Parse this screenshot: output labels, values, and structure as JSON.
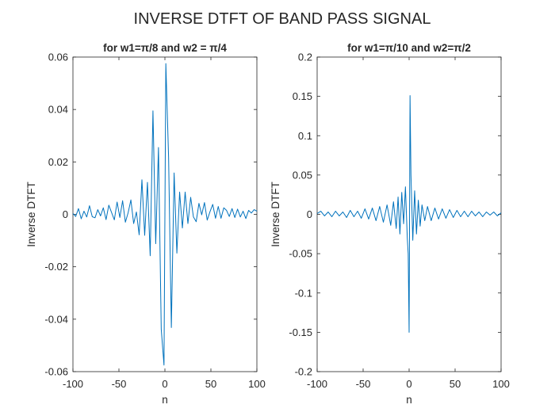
{
  "figure_title": "INVERSE DTFT OF BAND PASS SIGNAL",
  "line_color": "#0072BD",
  "chart_data": [
    {
      "type": "line",
      "title": "for w1=π/8 and w2 = π/4",
      "xlabel": "n",
      "ylabel": "Inverse DTFT",
      "xlim": [
        -100,
        100
      ],
      "ylim": [
        -0.06,
        0.06
      ],
      "xticks": [
        -100,
        -50,
        0,
        50,
        100
      ],
      "yticks": [
        -0.06,
        -0.04,
        -0.02,
        0,
        0.02,
        0.04,
        0.06
      ],
      "xtick_labels": [
        "-100",
        "-50",
        "0",
        "50",
        "100"
      ],
      "ytick_labels": [
        "-0.06",
        "-0.04",
        "-0.02",
        "0",
        "0.02",
        "0.04",
        "0.06"
      ],
      "grid": false,
      "series": [
        {
          "x": [
            -100,
            -97,
            -94,
            -91,
            -88,
            -85,
            -82,
            -79,
            -76,
            -73,
            -70,
            -67,
            -64,
            -61,
            -58,
            -55,
            -52,
            -49,
            -46,
            -43,
            -40,
            -37,
            -34,
            -31,
            -28,
            -25,
            -22,
            -19,
            -16,
            -13,
            -10,
            -7,
            -4,
            -1,
            0,
            1,
            4,
            7,
            10,
            13,
            16,
            19,
            22,
            25,
            28,
            31,
            34,
            37,
            40,
            43,
            46,
            49,
            52,
            55,
            58,
            61,
            64,
            67,
            70,
            73,
            76,
            79,
            82,
            85,
            88,
            91,
            94,
            97,
            100
          ],
          "y": [
            0.0003,
            -0.0008,
            0.0022,
            -0.0017,
            0.0012,
            -0.001,
            0.0033,
            -0.0009,
            -0.0013,
            0.0018,
            -0.0006,
            0.0025,
            -0.002,
            0.0035,
            0.0007,
            -0.0021,
            0.0047,
            -0.0012,
            0.0052,
            -0.003,
            0.0006,
            0.0055,
            -0.0035,
            0.0009,
            -0.0078,
            0.0132,
            -0.008,
            0.0122,
            -0.0158,
            0.0395,
            -0.0112,
            0.0255,
            -0.0438,
            -0.0575,
            0.0,
            0.0575,
            0.0218,
            -0.0432,
            0.0158,
            -0.0148,
            0.0085,
            -0.0052,
            0.0085,
            -0.0035,
            0.0065,
            -0.001,
            -0.0028,
            0.0042,
            -0.0002,
            0.0045,
            -0.0022,
            0.001,
            0.0038,
            -0.0015,
            0.003,
            -0.0015,
            0.0025,
            0.0015,
            -0.0008,
            0.0022,
            -0.0012,
            0.002,
            -0.001,
            0.0012,
            -0.0016,
            0.0015,
            0.0005,
            0.0018,
            0.0012
          ]
        }
      ]
    },
    {
      "type": "line",
      "title": "for w1=π/10 and w2=π/2",
      "xlabel": "n",
      "ylabel": "Inverse DTFT",
      "xlim": [
        -100,
        100
      ],
      "ylim": [
        -0.2,
        0.2
      ],
      "xticks": [
        -100,
        -50,
        0,
        50,
        100
      ],
      "yticks": [
        -0.2,
        -0.15,
        -0.1,
        -0.05,
        0,
        0.05,
        0.1,
        0.15,
        0.2
      ],
      "xtick_labels": [
        "-100",
        "-50",
        "0",
        "50",
        "100"
      ],
      "ytick_labels": [
        "-0.2",
        "-0.15",
        "-0.1",
        "-0.05",
        "0",
        "0.05",
        "0.1",
        "0.15",
        "0.2"
      ],
      "grid": false,
      "series": [
        {
          "x": [
            -100,
            -96,
            -92,
            -88,
            -84,
            -80,
            -76,
            -72,
            -68,
            -64,
            -60,
            -56,
            -52,
            -48,
            -44,
            -40,
            -36,
            -32,
            -28,
            -24,
            -20,
            -17,
            -14,
            -12,
            -10,
            -8,
            -6,
            -4,
            -2,
            -1,
            0,
            1,
            2,
            4,
            6,
            8,
            10,
            12,
            14,
            17,
            20,
            24,
            28,
            32,
            36,
            40,
            44,
            48,
            52,
            56,
            60,
            64,
            68,
            72,
            76,
            80,
            84,
            88,
            92,
            96,
            100
          ],
          "y": [
            0.001,
            0.004,
            -0.002,
            0.003,
            -0.003,
            0.004,
            -0.002,
            0.003,
            -0.004,
            0.005,
            -0.003,
            0.004,
            -0.005,
            0.007,
            -0.006,
            0.008,
            -0.008,
            0.01,
            -0.01,
            0.012,
            -0.014,
            0.016,
            -0.018,
            0.022,
            -0.025,
            0.028,
            -0.012,
            0.035,
            -0.03,
            -0.05,
            -0.15,
            0.151,
            0.05,
            -0.033,
            0.03,
            -0.025,
            0.018,
            -0.015,
            0.012,
            -0.008,
            0.01,
            -0.008,
            0.008,
            -0.006,
            0.007,
            -0.005,
            0.006,
            -0.004,
            0.005,
            -0.003,
            0.004,
            -0.003,
            0.004,
            -0.002,
            0.003,
            -0.003,
            0.003,
            -0.001,
            0.003,
            -0.002,
            0.002
          ]
        }
      ]
    }
  ]
}
